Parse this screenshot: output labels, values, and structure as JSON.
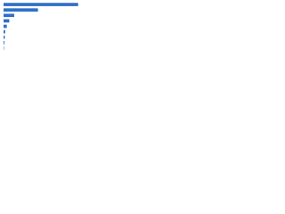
{
  "chart_data": {
    "type": "bar",
    "orientation": "horizontal",
    "categories": [
      null,
      null,
      null,
      null,
      null,
      null,
      null,
      null,
      null
    ],
    "values": [
      91,
      42,
      13,
      7,
      4,
      2,
      1.5,
      1,
      0.5
    ],
    "color": "#2f6fc7",
    "xlim": [
      0,
      100
    ]
  }
}
